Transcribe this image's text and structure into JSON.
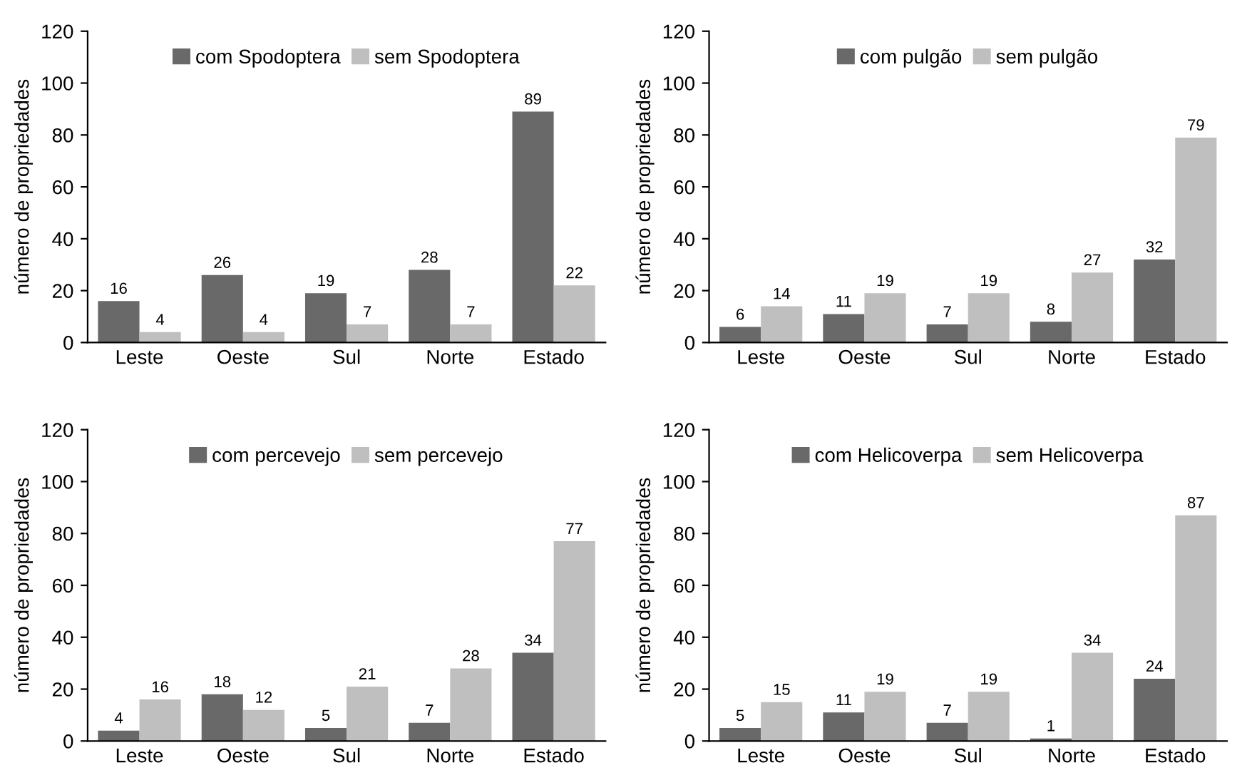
{
  "chart_data": [
    {
      "type": "bar",
      "ylabel": "número de propriedades",
      "categories": [
        "Leste",
        "Oeste",
        "Sul",
        "Norte",
        "Estado"
      ],
      "ylim": [
        0,
        120
      ],
      "yticks": [
        0,
        20,
        40,
        60,
        80,
        100,
        120
      ],
      "grid": false,
      "legend": "top",
      "data_labels": true,
      "series": [
        {
          "name": "com Spodoptera",
          "color": "#696969",
          "values": [
            16,
            26,
            19,
            28,
            89
          ]
        },
        {
          "name": "sem Spodoptera",
          "color": "#bfbfbf",
          "values": [
            4,
            4,
            7,
            7,
            22
          ]
        }
      ]
    },
    {
      "type": "bar",
      "ylabel": "número de propriedades",
      "categories": [
        "Leste",
        "Oeste",
        "Sul",
        "Norte",
        "Estado"
      ],
      "ylim": [
        0,
        120
      ],
      "yticks": [
        0,
        20,
        40,
        60,
        80,
        100,
        120
      ],
      "grid": false,
      "legend": "top",
      "data_labels": true,
      "series": [
        {
          "name": "com pulgão",
          "color": "#696969",
          "values": [
            6,
            11,
            7,
            8,
            32
          ]
        },
        {
          "name": "sem pulgão",
          "color": "#bfbfbf",
          "values": [
            14,
            19,
            19,
            27,
            79
          ]
        }
      ]
    },
    {
      "type": "bar",
      "ylabel": "número de propriedades",
      "categories": [
        "Leste",
        "Oeste",
        "Sul",
        "Norte",
        "Estado"
      ],
      "ylim": [
        0,
        120
      ],
      "yticks": [
        0,
        20,
        40,
        60,
        80,
        100,
        120
      ],
      "grid": false,
      "legend": "top",
      "data_labels": true,
      "series": [
        {
          "name": "com percevejo",
          "color": "#696969",
          "values": [
            4,
            18,
            5,
            7,
            34
          ]
        },
        {
          "name": "sem percevejo",
          "color": "#bfbfbf",
          "values": [
            16,
            12,
            21,
            28,
            77
          ]
        }
      ]
    },
    {
      "type": "bar",
      "ylabel": "número de propriedades",
      "categories": [
        "Leste",
        "Oeste",
        "Sul",
        "Norte",
        "Estado"
      ],
      "ylim": [
        0,
        120
      ],
      "yticks": [
        0,
        20,
        40,
        60,
        80,
        100,
        120
      ],
      "grid": false,
      "legend": "top",
      "data_labels": true,
      "series": [
        {
          "name": "com Helicoverpa",
          "color": "#696969",
          "values": [
            5,
            11,
            7,
            1,
            24
          ]
        },
        {
          "name": "sem Helicoverpa",
          "color": "#bfbfbf",
          "values": [
            15,
            19,
            19,
            34,
            87
          ]
        }
      ]
    }
  ]
}
